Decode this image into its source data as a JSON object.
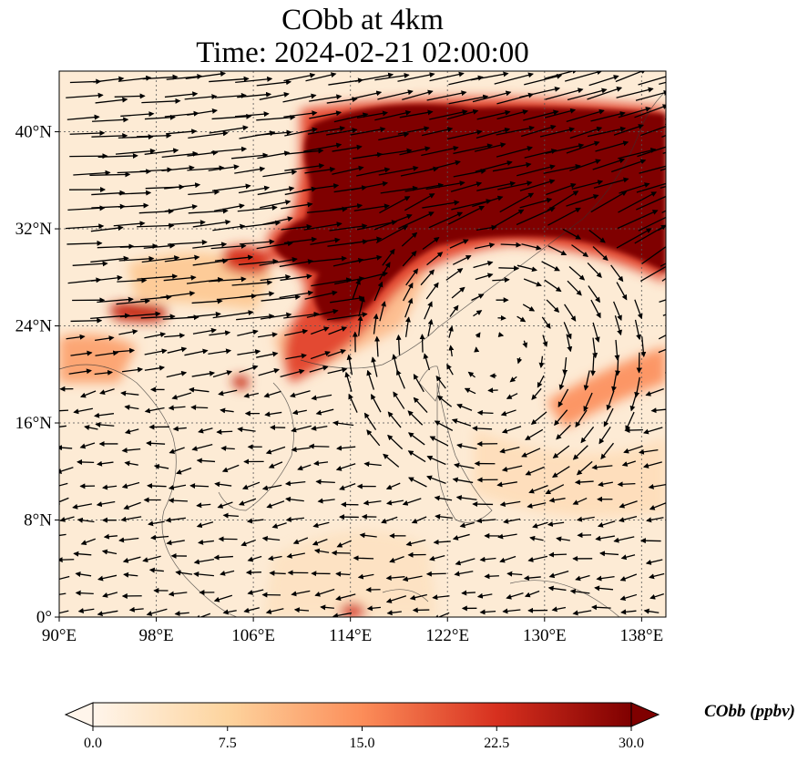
{
  "title": {
    "line1": "CObb at 4km",
    "line2": "Time: 2024-02-21 02:00:00"
  },
  "map": {
    "lon_range": [
      90,
      140
    ],
    "lat_range": [
      0,
      45
    ],
    "lon_ticks": [
      "90°E",
      "98°E",
      "106°E",
      "114°E",
      "122°E",
      "130°E",
      "138°E"
    ],
    "lat_ticks": [
      "0°",
      "8°N",
      "16°N",
      "24°N",
      "32°N",
      "40°N"
    ],
    "lon_tick_values": [
      90,
      98,
      106,
      114,
      122,
      130,
      138
    ],
    "lat_tick_values": [
      0,
      8,
      16,
      24,
      32,
      40
    ],
    "gridlines": true,
    "wind_vectors": true,
    "anticyclone_center": [
      126,
      22
    ]
  },
  "colorbar": {
    "label": "CObb (ppbv)",
    "ticks": [
      "0.0",
      "7.5",
      "15.0",
      "22.5",
      "30.0"
    ],
    "min": 0,
    "max": 30,
    "colormap": [
      "#fff5eb",
      "#fdd49e",
      "#fc8d59",
      "#d7301f",
      "#7f0000"
    ],
    "extend": "both"
  }
}
